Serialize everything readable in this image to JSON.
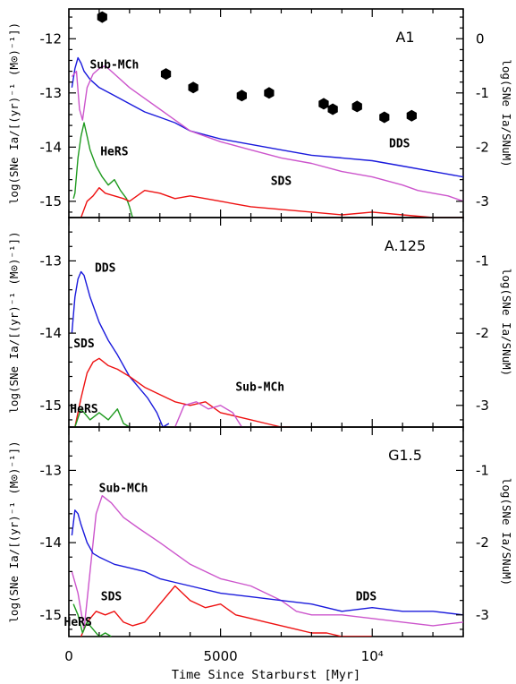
{
  "figure": {
    "xlabel": "Time Since Starburst [Myr]",
    "ylabel_left_top": "log(SNe Ia/[(yr)⁻¹ (M⊙)⁻¹])",
    "ylabel_left_mid": "log(SNe Ia/[(yr)⁻¹ (M⊙)⁻¹])",
    "ylabel_left_bot": "log(SNe Ia/[(yr)⁻¹ (M⊙)⁻¹])",
    "ylabel_right": "log(SNe Ia/SNuM)",
    "xticks": [
      {
        "value": 0,
        "label": "0"
      },
      {
        "value": 5000,
        "label": "5000"
      },
      {
        "value": 10000,
        "label": "10⁴"
      }
    ]
  },
  "colors": {
    "DDS": "#1a1adc",
    "Sub-MCh": "#cc55cc",
    "HeRS": "#1f9a1f",
    "SDS": "#ee1111",
    "observed": "#000000"
  },
  "chart_data": [
    {
      "type": "line",
      "panel": "A1",
      "title": "A1",
      "xlim": [
        0,
        13000
      ],
      "ylim": [
        -15.3,
        -11.45
      ],
      "right_ylim": [
        -3.3,
        0.55
      ],
      "yticks": [
        -12,
        -13,
        -14,
        -15
      ],
      "right_yticks": [
        0,
        -1,
        -2,
        -3
      ],
      "series": [
        {
          "name": "DDS",
          "x": [
            100,
            200,
            300,
            400,
            500,
            700,
            1000,
            1500,
            2000,
            2500,
            3000,
            3500,
            4000,
            5000,
            6000,
            7000,
            8000,
            9000,
            10000,
            11000,
            12000,
            12500,
            13000
          ],
          "y": [
            -12.9,
            -12.55,
            -12.35,
            -12.45,
            -12.6,
            -12.75,
            -12.9,
            -13.05,
            -13.2,
            -13.35,
            -13.45,
            -13.55,
            -13.7,
            -13.85,
            -13.95,
            -14.05,
            -14.15,
            -14.2,
            -14.25,
            -14.35,
            -14.45,
            -14.5,
            -14.55
          ]
        },
        {
          "name": "Sub-MCh",
          "x": [
            100,
            250,
            350,
            450,
            600,
            800,
            1000,
            1200,
            1500,
            2000,
            2500,
            3000,
            3500,
            4000,
            5000,
            6000,
            7000,
            8000,
            9000,
            10000,
            11000,
            11500,
            12000,
            12500,
            13000
          ],
          "y": [
            -12.7,
            -12.6,
            -13.3,
            -13.5,
            -12.9,
            -12.65,
            -12.55,
            -12.5,
            -12.65,
            -12.9,
            -13.1,
            -13.3,
            -13.5,
            -13.7,
            -13.9,
            -14.05,
            -14.2,
            -14.3,
            -14.45,
            -14.55,
            -14.7,
            -14.8,
            -14.85,
            -14.9,
            -15.0
          ]
        },
        {
          "name": "HeRS",
          "x": [
            150,
            200,
            300,
            400,
            500,
            600,
            700,
            900,
            1100,
            1300,
            1500,
            1700,
            1900,
            2000,
            2100
          ],
          "y": [
            -14.95,
            -14.85,
            -14.2,
            -13.8,
            -13.55,
            -13.8,
            -14.05,
            -14.35,
            -14.55,
            -14.7,
            -14.6,
            -14.8,
            -14.95,
            -15.1,
            -15.3
          ]
        },
        {
          "name": "SDS",
          "x": [
            400,
            600,
            800,
            1000,
            1200,
            1500,
            1800,
            2000,
            2500,
            3000,
            3500,
            4000,
            4500,
            5000,
            5500,
            6000,
            7000,
            8000,
            9000,
            10000,
            11000,
            12000,
            12500,
            13000
          ],
          "y": [
            -15.3,
            -15.0,
            -14.9,
            -14.75,
            -14.85,
            -14.9,
            -14.95,
            -15.0,
            -14.8,
            -14.85,
            -14.95,
            -14.9,
            -14.95,
            -15.0,
            -15.05,
            -15.1,
            -15.15,
            -15.2,
            -15.25,
            -15.2,
            -15.25,
            -15.3,
            -15.3,
            -15.3
          ]
        },
        {
          "name": "observed",
          "x": [
            1100,
            3200,
            4100,
            5700,
            6600,
            8400,
            8700,
            9500,
            10400,
            11300
          ],
          "y": [
            -11.6,
            -12.65,
            -12.9,
            -13.05,
            -13.0,
            -13.2,
            -13.3,
            -13.25,
            -13.45,
            -13.42
          ]
        }
      ],
      "annotations": [
        {
          "text": "Sub-MCh",
          "x": 1500,
          "y": -12.55,
          "series": "Sub-MCh"
        },
        {
          "text": "DDS",
          "x": 10900,
          "y": -14.0,
          "series": "DDS"
        },
        {
          "text": "HeRS",
          "x": 1500,
          "y": -14.15,
          "series": "HeRS"
        },
        {
          "text": "SDS",
          "x": 7000,
          "y": -14.7,
          "series": "SDS"
        }
      ]
    },
    {
      "type": "line",
      "panel": "A.125",
      "title": "A.125",
      "xlim": [
        0,
        13000
      ],
      "ylim": [
        -15.3,
        -12.4
      ],
      "right_ylim": [
        -3.3,
        -0.4
      ],
      "yticks": [
        -13,
        -14,
        -15
      ],
      "right_yticks": [
        -1,
        -2,
        -3
      ],
      "series": [
        {
          "name": "DDS",
          "x": [
            100,
            200,
            300,
            400,
            500,
            700,
            1000,
            1300,
            1600,
            2000,
            2300,
            2600,
            2900,
            3100,
            3300
          ],
          "y": [
            -14.0,
            -13.5,
            -13.25,
            -13.15,
            -13.2,
            -13.5,
            -13.85,
            -14.1,
            -14.3,
            -14.6,
            -14.75,
            -14.9,
            -15.1,
            -15.3,
            -15.25
          ]
        },
        {
          "name": "SDS",
          "x": [
            200,
            400,
            600,
            800,
            1000,
            1300,
            1600,
            2000,
            2500,
            3000,
            3500,
            4000,
            4500,
            5000,
            5500,
            6000,
            6500,
            7000,
            7300
          ],
          "y": [
            -15.3,
            -14.9,
            -14.55,
            -14.4,
            -14.35,
            -14.45,
            -14.5,
            -14.6,
            -14.75,
            -14.85,
            -14.95,
            -15.0,
            -14.95,
            -15.1,
            -15.15,
            -15.2,
            -15.25,
            -15.3,
            -15.3
          ]
        },
        {
          "name": "Sub-MCh",
          "x": [
            3500,
            3800,
            4200,
            4600,
            5000,
            5400,
            5700
          ],
          "y": [
            -15.3,
            -15.0,
            -14.95,
            -15.05,
            -15.0,
            -15.1,
            -15.3
          ]
        },
        {
          "name": "HeRS",
          "x": [
            200,
            400,
            700,
            1000,
            1300,
            1600,
            1800,
            2000
          ],
          "y": [
            -15.3,
            -15.05,
            -15.2,
            -15.1,
            -15.2,
            -15.05,
            -15.25,
            -15.3
          ]
        }
      ],
      "annotations": [
        {
          "text": "DDS",
          "x": 1200,
          "y": -13.15,
          "series": "DDS"
        },
        {
          "text": "SDS",
          "x": 500,
          "y": -14.2,
          "series": "SDS"
        },
        {
          "text": "Sub-MCh",
          "x": 6300,
          "y": -14.8,
          "series": "Sub-MCh"
        },
        {
          "text": "HeRS",
          "x": 500,
          "y": -15.1,
          "series": "HeRS"
        }
      ]
    },
    {
      "type": "line",
      "panel": "G1.5",
      "title": "G1.5",
      "xlim": [
        0,
        13000
      ],
      "ylim": [
        -15.3,
        -12.4
      ],
      "right_ylim": [
        -3.3,
        -0.4
      ],
      "yticks": [
        -13,
        -14,
        -15
      ],
      "right_yticks": [
        -1,
        -2,
        -3
      ],
      "series": [
        {
          "name": "Sub-MCh",
          "x": [
            100,
            300,
            500,
            700,
            900,
            1100,
            1400,
            1800,
            2300,
            3000,
            3500,
            4000,
            5000,
            6000,
            7000,
            7500,
            8000,
            9000,
            10000,
            11000,
            12000,
            13000
          ],
          "y": [
            -14.4,
            -14.7,
            -15.2,
            -14.4,
            -13.6,
            -13.35,
            -13.45,
            -13.65,
            -13.8,
            -14.0,
            -14.15,
            -14.3,
            -14.5,
            -14.6,
            -14.8,
            -14.95,
            -15.0,
            -15.0,
            -15.05,
            -15.1,
            -15.15,
            -15.1
          ]
        },
        {
          "name": "DDS",
          "x": [
            100,
            200,
            300,
            400,
            600,
            800,
            1000,
            1500,
            2000,
            2500,
            3000,
            3500,
            4000,
            5000,
            6000,
            7000,
            8000,
            9000,
            10000,
            11000,
            12000,
            13000
          ],
          "y": [
            -13.9,
            -13.55,
            -13.6,
            -13.75,
            -14.0,
            -14.15,
            -14.2,
            -14.3,
            -14.35,
            -14.4,
            -14.5,
            -14.55,
            -14.6,
            -14.7,
            -14.75,
            -14.8,
            -14.85,
            -14.95,
            -14.9,
            -14.95,
            -14.95,
            -15.0
          ]
        },
        {
          "name": "SDS",
          "x": [
            400,
            600,
            900,
            1200,
            1500,
            1800,
            2100,
            2500,
            3000,
            3500,
            4000,
            4500,
            5000,
            5500,
            6000,
            6500,
            7000,
            7500,
            8000,
            8500,
            9000,
            9500,
            10000
          ],
          "y": [
            -15.3,
            -15.1,
            -14.95,
            -15.0,
            -14.95,
            -15.1,
            -15.15,
            -15.1,
            -14.85,
            -14.6,
            -14.8,
            -14.9,
            -14.85,
            -15.0,
            -15.05,
            -15.1,
            -15.15,
            -15.2,
            -15.25,
            -15.25,
            -15.3,
            -15.3,
            -15.3
          ]
        },
        {
          "name": "HeRS",
          "x": [
            150,
            300,
            450,
            600,
            800,
            1000,
            1200,
            1400
          ],
          "y": [
            -14.85,
            -15.0,
            -15.25,
            -15.1,
            -15.2,
            -15.3,
            -15.25,
            -15.3
          ]
        }
      ],
      "annotations": [
        {
          "text": "Sub-MCh",
          "x": 1800,
          "y": -13.3,
          "series": "Sub-MCh"
        },
        {
          "text": "DDS",
          "x": 9800,
          "y": -14.8,
          "series": "DDS"
        },
        {
          "text": "SDS",
          "x": 1400,
          "y": -14.8,
          "series": "SDS"
        },
        {
          "text": "HeRS",
          "x": 300,
          "y": -15.15,
          "series": "HeRS"
        }
      ]
    }
  ]
}
